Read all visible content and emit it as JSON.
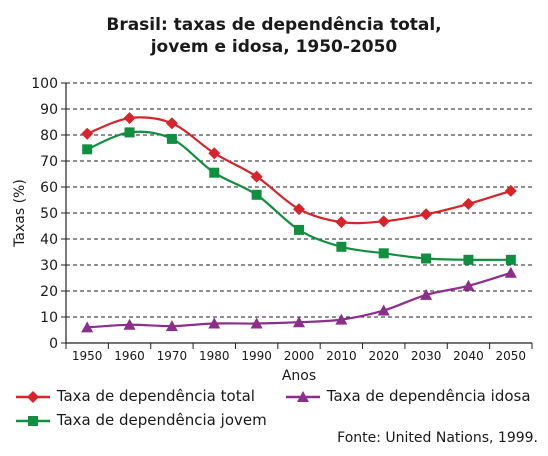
{
  "title_line1": "Brasil: taxas de dependência total,",
  "title_line2": "jovem e idosa, 1950-2050",
  "source": "Fonte: United Nations, 1999.",
  "chart_data": {
    "type": "line",
    "xlabel": "Anos",
    "ylabel": "Taxas (%)",
    "ylim": [
      0,
      100
    ],
    "yticks": [
      0,
      10,
      20,
      30,
      40,
      50,
      60,
      70,
      80,
      90,
      100
    ],
    "grid": "horizontal dashed",
    "x": [
      "1950",
      "1960",
      "1970",
      "1980",
      "1990",
      "2000",
      "2010",
      "2020",
      "2030",
      "2040",
      "2050"
    ],
    "series": [
      {
        "name": "Taxa de dependência total",
        "color": "#d7242b",
        "marker": "diamond",
        "values": [
          80.5,
          86.5,
          84.5,
          73,
          64,
          51.5,
          46.5,
          46.8,
          49.5,
          53.5,
          58.5
        ]
      },
      {
        "name": "Taxa de dependência jovem",
        "color": "#0f8f3f",
        "marker": "square",
        "values": [
          74.5,
          81,
          78.5,
          65.5,
          57,
          43.5,
          37,
          34.5,
          32.5,
          32,
          32
        ]
      },
      {
        "name": "Taxa de dependência idosa",
        "color": "#8b2f8b",
        "marker": "triangle",
        "values": [
          6,
          7,
          6.5,
          7.5,
          7.5,
          8,
          9,
          12.5,
          18.5,
          22,
          27
        ]
      }
    ]
  }
}
